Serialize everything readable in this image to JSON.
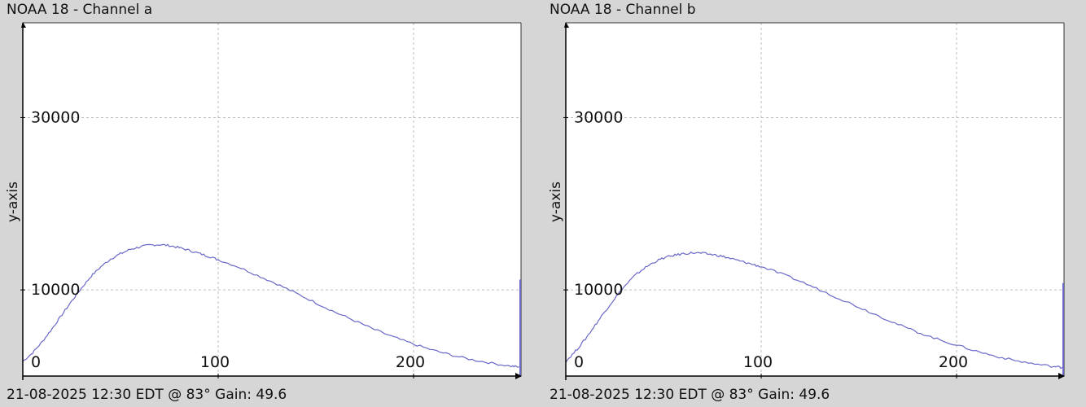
{
  "chart_data": [
    {
      "type": "line",
      "title": "NOAA 18 - Channel a",
      "ylabel": "y-axis",
      "footer": "21-08-2025 12:30 EDT @ 83° Gain: 49.6",
      "xticks": [
        "0",
        "100",
        "200"
      ],
      "yticks": [
        "10000",
        "30000"
      ],
      "xlim": [
        0,
        255
      ],
      "ylim": [
        0,
        41000
      ],
      "grid": true,
      "line_color": "#6a68c8",
      "series": [
        {
          "x": [
            0,
            5,
            10,
            15,
            20,
            25,
            30,
            35,
            40,
            45,
            50,
            55,
            60,
            65,
            70,
            75,
            80,
            85,
            90,
            95,
            100,
            110,
            120,
            130,
            140,
            150,
            160,
            170,
            180,
            190,
            200,
            210,
            220,
            230,
            240,
            250,
            254
          ],
          "y": [
            1700,
            2700,
            4000,
            5500,
            7100,
            8700,
            10200,
            11600,
            12700,
            13600,
            14200,
            14700,
            15000,
            15200,
            15250,
            15150,
            14900,
            14600,
            14250,
            13900,
            13500,
            12700,
            11700,
            10700,
            9600,
            8500,
            7400,
            6400,
            5400,
            4500,
            3700,
            3000,
            2400,
            1900,
            1500,
            1150,
            1050
          ]
        }
      ],
      "edge_spike": {
        "x": 255,
        "y": 11200
      }
    },
    {
      "type": "line",
      "title": "NOAA 18 - Channel b",
      "ylabel": "y-axis",
      "footer": "21-08-2025 12:30 EDT @ 83° Gain: 49.6",
      "xticks": [
        "0",
        "100",
        "200"
      ],
      "yticks": [
        "10000",
        "30000"
      ],
      "xlim": [
        0,
        255
      ],
      "ylim": [
        0,
        41000
      ],
      "grid": true,
      "line_color": "#6a68c8",
      "series": [
        {
          "x": [
            0,
            5,
            10,
            15,
            20,
            25,
            30,
            35,
            40,
            45,
            50,
            55,
            60,
            65,
            70,
            75,
            80,
            85,
            90,
            95,
            100,
            110,
            120,
            130,
            140,
            150,
            160,
            170,
            180,
            190,
            200,
            210,
            220,
            230,
            240,
            250,
            254
          ],
          "y": [
            1700,
            2900,
            4300,
            5900,
            7500,
            9000,
            10400,
            11600,
            12500,
            13200,
            13700,
            14000,
            14200,
            14300,
            14250,
            14100,
            13900,
            13600,
            13300,
            13000,
            12700,
            11900,
            11000,
            10000,
            9000,
            8000,
            7000,
            6000,
            5100,
            4300,
            3600,
            2900,
            2300,
            1800,
            1400,
            1100,
            1000
          ]
        }
      ],
      "edge_spike": {
        "x": 255,
        "y": 10800
      }
    }
  ]
}
